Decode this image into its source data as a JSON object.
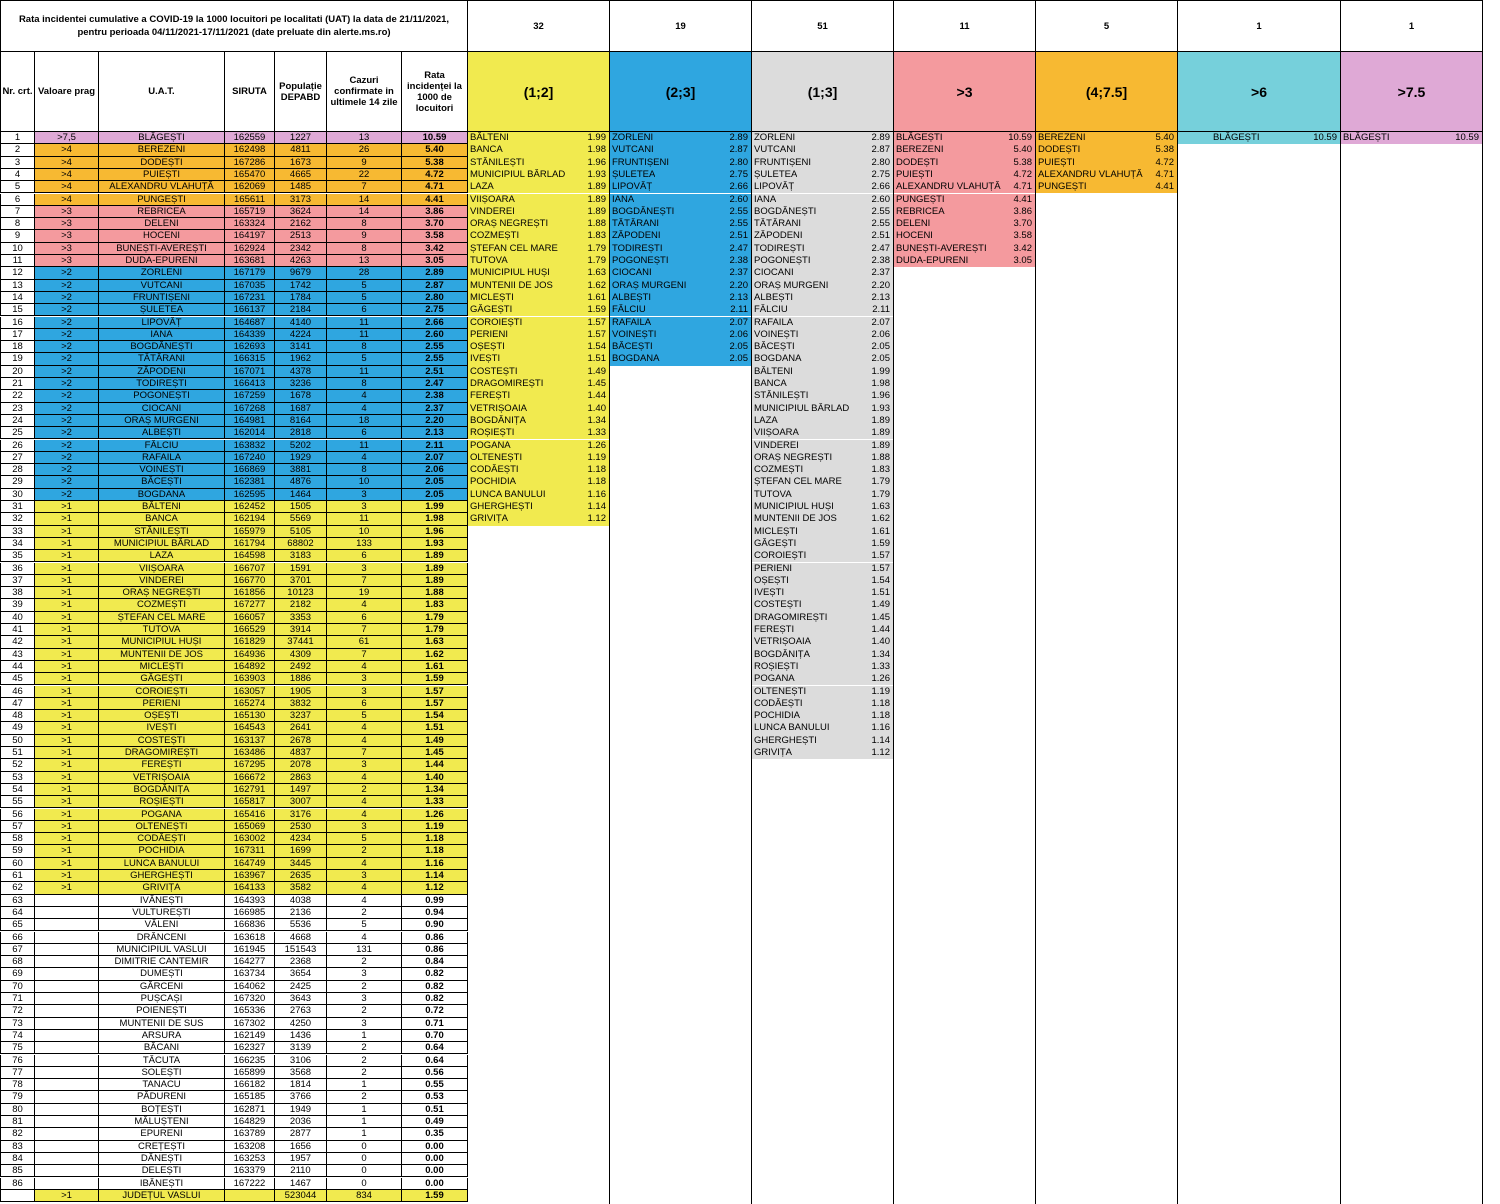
{
  "title": "Rata incidentei cumulative a COVID-19 la 1000 locuitori pe localitati (UAT) la data de 21/11/2021, pentru perioada 04/11/2021-17/11/2021 (date preluate din alerte.ms.ro)",
  "headers": {
    "nr": "Nr. crt.",
    "prag": "Valoare prag",
    "uat": "U.A.T.",
    "siruta": "SIRUTA",
    "pop": "Populație DEPABD",
    "cazuri": "Cazuri confirmate in ultimele 14 zile",
    "rata": "Rata incidenței la 1000 de locuitori"
  },
  "colors": {
    "gt75": "#dfa9d6",
    "gt4": "#f7b932",
    "gt3": "#f49a9e",
    "gt2": "#2fa6e0",
    "gt1": "#f1ea4f",
    "none": "#ffffff",
    "grey": "#dcdcdc",
    "cyan": "#76d0db"
  },
  "rows": [
    [
      "1",
      ">7,5",
      "BLĂGEȘTI",
      "162559",
      "1227",
      "13",
      "10.59"
    ],
    [
      "2",
      ">4",
      "BEREZENI",
      "162498",
      "4811",
      "26",
      "5.40"
    ],
    [
      "3",
      ">4",
      "DODEȘTI",
      "167286",
      "1673",
      "9",
      "5.38"
    ],
    [
      "4",
      ">4",
      "PUIEȘTI",
      "165470",
      "4665",
      "22",
      "4.72"
    ],
    [
      "5",
      ">4",
      "ALEXANDRU VLAHUȚĂ",
      "162069",
      "1485",
      "7",
      "4.71"
    ],
    [
      "6",
      ">4",
      "PUNGEȘTI",
      "165611",
      "3173",
      "14",
      "4.41"
    ],
    [
      "7",
      ">3",
      "REBRICEA",
      "165719",
      "3624",
      "14",
      "3.86"
    ],
    [
      "8",
      ">3",
      "DELENI",
      "163324",
      "2162",
      "8",
      "3.70"
    ],
    [
      "9",
      ">3",
      "HOCENI",
      "164197",
      "2513",
      "9",
      "3.58"
    ],
    [
      "10",
      ">3",
      "BUNEȘTI-AVEREȘTI",
      "162924",
      "2342",
      "8",
      "3.42"
    ],
    [
      "11",
      ">3",
      "DUDA-EPURENI",
      "163681",
      "4263",
      "13",
      "3.05"
    ],
    [
      "12",
      ">2",
      "ZORLENI",
      "167179",
      "9679",
      "28",
      "2.89"
    ],
    [
      "13",
      ">2",
      "VUTCANI",
      "167035",
      "1742",
      "5",
      "2.87"
    ],
    [
      "14",
      ">2",
      "FRUNTIȘENI",
      "167231",
      "1784",
      "5",
      "2.80"
    ],
    [
      "15",
      ">2",
      "ȘULETEA",
      "166137",
      "2184",
      "6",
      "2.75"
    ],
    [
      "16",
      ">2",
      "LIPOVĂȚ",
      "164687",
      "4140",
      "11",
      "2.66"
    ],
    [
      "17",
      ">2",
      "IANA",
      "164339",
      "4224",
      "11",
      "2.60"
    ],
    [
      "18",
      ">2",
      "BOGDĂNEȘTI",
      "162693",
      "3141",
      "8",
      "2.55"
    ],
    [
      "19",
      ">2",
      "TĂTĂRANI",
      "166315",
      "1962",
      "5",
      "2.55"
    ],
    [
      "20",
      ">2",
      "ZĂPODENI",
      "167071",
      "4378",
      "11",
      "2.51"
    ],
    [
      "21",
      ">2",
      "TODIREȘTI",
      "166413",
      "3236",
      "8",
      "2.47"
    ],
    [
      "22",
      ">2",
      "POGONEȘTI",
      "167259",
      "1678",
      "4",
      "2.38"
    ],
    [
      "23",
      ">2",
      "CIOCANI",
      "167268",
      "1687",
      "4",
      "2.37"
    ],
    [
      "24",
      ">2",
      "ORAȘ MURGENI",
      "164981",
      "8164",
      "18",
      "2.20"
    ],
    [
      "25",
      ">2",
      "ALBEȘTI",
      "162014",
      "2818",
      "6",
      "2.13"
    ],
    [
      "26",
      ">2",
      "FĂLCIU",
      "163832",
      "5202",
      "11",
      "2.11"
    ],
    [
      "27",
      ">2",
      "RAFAILA",
      "167240",
      "1929",
      "4",
      "2.07"
    ],
    [
      "28",
      ">2",
      "VOINEȘTI",
      "166869",
      "3881",
      "8",
      "2.06"
    ],
    [
      "29",
      ">2",
      "BĂCEȘTI",
      "162381",
      "4876",
      "10",
      "2.05"
    ],
    [
      "30",
      ">2",
      "BOGDANA",
      "162595",
      "1464",
      "3",
      "2.05"
    ],
    [
      "31",
      ">1",
      "BĂLTENI",
      "162452",
      "1505",
      "3",
      "1.99"
    ],
    [
      "32",
      ">1",
      "BANCA",
      "162194",
      "5569",
      "11",
      "1.98"
    ],
    [
      "33",
      ">1",
      "STĂNILEȘTI",
      "165979",
      "5105",
      "10",
      "1.96"
    ],
    [
      "34",
      ">1",
      "MUNICIPIUL BÂRLAD",
      "161794",
      "68802",
      "133",
      "1.93"
    ],
    [
      "35",
      ">1",
      "LAZA",
      "164598",
      "3183",
      "6",
      "1.89"
    ],
    [
      "36",
      ">1",
      "VIIȘOARA",
      "166707",
      "1591",
      "3",
      "1.89"
    ],
    [
      "37",
      ">1",
      "VINDEREI",
      "166770",
      "3701",
      "7",
      "1.89"
    ],
    [
      "38",
      ">1",
      "ORAȘ NEGREȘTI",
      "161856",
      "10123",
      "19",
      "1.88"
    ],
    [
      "39",
      ">1",
      "COZMEȘTI",
      "167277",
      "2182",
      "4",
      "1.83"
    ],
    [
      "40",
      ">1",
      "ȘTEFAN CEL MARE",
      "166057",
      "3353",
      "6",
      "1.79"
    ],
    [
      "41",
      ">1",
      "TUTOVA",
      "166529",
      "3914",
      "7",
      "1.79"
    ],
    [
      "42",
      ">1",
      "MUNICIPIUL HUȘI",
      "161829",
      "37441",
      "61",
      "1.63"
    ],
    [
      "43",
      ">1",
      "MUNTENII DE JOS",
      "164936",
      "4309",
      "7",
      "1.62"
    ],
    [
      "44",
      ">1",
      "MICLEȘTI",
      "164892",
      "2492",
      "4",
      "1.61"
    ],
    [
      "45",
      ">1",
      "GĂGEȘTI",
      "163903",
      "1886",
      "3",
      "1.59"
    ],
    [
      "46",
      ">1",
      "COROIEȘTI",
      "163057",
      "1905",
      "3",
      "1.57"
    ],
    [
      "47",
      ">1",
      "PERIENI",
      "165274",
      "3832",
      "6",
      "1.57"
    ],
    [
      "48",
      ">1",
      "OȘEȘTI",
      "165130",
      "3237",
      "5",
      "1.54"
    ],
    [
      "49",
      ">1",
      "IVEȘTI",
      "164543",
      "2641",
      "4",
      "1.51"
    ],
    [
      "50",
      ">1",
      "COSTEȘTI",
      "163137",
      "2678",
      "4",
      "1.49"
    ],
    [
      "51",
      ">1",
      "DRAGOMIREȘTI",
      "163486",
      "4837",
      "7",
      "1.45"
    ],
    [
      "52",
      ">1",
      "FEREȘTI",
      "167295",
      "2078",
      "3",
      "1.44"
    ],
    [
      "53",
      ">1",
      "VETRIȘOAIA",
      "166672",
      "2863",
      "4",
      "1.40"
    ],
    [
      "54",
      ">1",
      "BOGDĂNIȚA",
      "162791",
      "1497",
      "2",
      "1.34"
    ],
    [
      "55",
      ">1",
      "ROȘIEȘTI",
      "165817",
      "3007",
      "4",
      "1.33"
    ],
    [
      "56",
      ">1",
      "POGANA",
      "165416",
      "3176",
      "4",
      "1.26"
    ],
    [
      "57",
      ">1",
      "OLTENEȘTI",
      "165069",
      "2530",
      "3",
      "1.19"
    ],
    [
      "58",
      ">1",
      "CODĂEȘTI",
      "163002",
      "4234",
      "5",
      "1.18"
    ],
    [
      "59",
      ">1",
      "POCHIDIA",
      "167311",
      "1699",
      "2",
      "1.18"
    ],
    [
      "60",
      ">1",
      "LUNCA BANULUI",
      "164749",
      "3445",
      "4",
      "1.16"
    ],
    [
      "61",
      ">1",
      "GHERGHEȘTI",
      "163967",
      "2635",
      "3",
      "1.14"
    ],
    [
      "62",
      ">1",
      "GRIVIȚA",
      "164133",
      "3582",
      "4",
      "1.12"
    ],
    [
      "63",
      "",
      "IVĂNEȘTI",
      "164393",
      "4038",
      "4",
      "0.99"
    ],
    [
      "64",
      "",
      "VULTUREȘTI",
      "166985",
      "2136",
      "2",
      "0.94"
    ],
    [
      "65",
      "",
      "VĂLENI",
      "166836",
      "5536",
      "5",
      "0.90"
    ],
    [
      "66",
      "",
      "DRÂNCENI",
      "163618",
      "4668",
      "4",
      "0.86"
    ],
    [
      "67",
      "",
      "MUNICIPIUL VASLUI",
      "161945",
      "151543",
      "131",
      "0.86"
    ],
    [
      "68",
      "",
      "DIMITRIE CANTEMIR",
      "164277",
      "2368",
      "2",
      "0.84"
    ],
    [
      "69",
      "",
      "DUMEȘTI",
      "163734",
      "3654",
      "3",
      "0.82"
    ],
    [
      "70",
      "",
      "GĂRCENI",
      "164062",
      "2425",
      "2",
      "0.82"
    ],
    [
      "71",
      "",
      "PUȘCAȘI",
      "167320",
      "3643",
      "3",
      "0.82"
    ],
    [
      "72",
      "",
      "POIENEȘTI",
      "165336",
      "2763",
      "2",
      "0.72"
    ],
    [
      "73",
      "",
      "MUNTENII DE SUS",
      "167302",
      "4250",
      "3",
      "0.71"
    ],
    [
      "74",
      "",
      "ARSURA",
      "162149",
      "1436",
      "1",
      "0.70"
    ],
    [
      "75",
      "",
      "BĂCANI",
      "162327",
      "3139",
      "2",
      "0.64"
    ],
    [
      "76",
      "",
      "TĂCUTA",
      "166235",
      "3106",
      "2",
      "0.64"
    ],
    [
      "77",
      "",
      "SOLEȘTI",
      "165899",
      "3568",
      "2",
      "0.56"
    ],
    [
      "78",
      "",
      "TANACU",
      "166182",
      "1814",
      "1",
      "0.55"
    ],
    [
      "79",
      "",
      "PĂDURENI",
      "165185",
      "3766",
      "2",
      "0.53"
    ],
    [
      "80",
      "",
      "BOȚEȘTI",
      "162871",
      "1949",
      "1",
      "0.51"
    ],
    [
      "81",
      "",
      "MĂLUȘTENI",
      "164829",
      "2036",
      "1",
      "0.49"
    ],
    [
      "82",
      "",
      "EPURENI",
      "163789",
      "2877",
      "1",
      "0.35"
    ],
    [
      "83",
      "",
      "CREȚEȘTI",
      "163208",
      "1656",
      "0",
      "0.00"
    ],
    [
      "84",
      "",
      "DĂNEȘTI",
      "163253",
      "1957",
      "0",
      "0.00"
    ],
    [
      "85",
      "",
      "DELEȘTI",
      "163379",
      "2110",
      "0",
      "0.00"
    ],
    [
      "86",
      "",
      "IBĂNEȘTI",
      "167222",
      "1467",
      "0",
      "0.00"
    ]
  ],
  "total": [
    "",
    ">1",
    "JUDEȚUL VASLUI",
    "",
    "523044",
    "834",
    "1.59"
  ],
  "lists": [
    {
      "count": "32",
      "band": "(1;2]",
      "color": "#f1ea4f",
      "items": [
        [
          "BĂLTENI",
          "1.99"
        ],
        [
          "BANCA",
          "1.98"
        ],
        [
          "STĂNILEȘTI",
          "1.96"
        ],
        [
          "MUNICIPIUL BÂRLAD",
          "1.93"
        ],
        [
          "LAZA",
          "1.89"
        ],
        [
          "VIIȘOARA",
          "1.89"
        ],
        [
          "VINDEREI",
          "1.89"
        ],
        [
          "ORAȘ NEGREȘTI",
          "1.88"
        ],
        [
          "COZMEȘTI",
          "1.83"
        ],
        [
          "ȘTEFAN CEL MARE",
          "1.79"
        ],
        [
          "TUTOVA",
          "1.79"
        ],
        [
          "MUNICIPIUL HUȘI",
          "1.63"
        ],
        [
          "MUNTENII DE JOS",
          "1.62"
        ],
        [
          "MICLEȘTI",
          "1.61"
        ],
        [
          "GĂGEȘTI",
          "1.59"
        ],
        [
          "COROIEȘTI",
          "1.57"
        ],
        [
          "PERIENI",
          "1.57"
        ],
        [
          "OȘEȘTI",
          "1.54"
        ],
        [
          "IVEȘTI",
          "1.51"
        ],
        [
          "COSTEȘTI",
          "1.49"
        ],
        [
          "DRAGOMIREȘTI",
          "1.45"
        ],
        [
          "FEREȘTI",
          "1.44"
        ],
        [
          "VETRIȘOAIA",
          "1.40"
        ],
        [
          "BOGDĂNIȚA",
          "1.34"
        ],
        [
          "ROȘIEȘTI",
          "1.33"
        ],
        [
          "POGANA",
          "1.26"
        ],
        [
          "OLTENEȘTI",
          "1.19"
        ],
        [
          "CODĂEȘTI",
          "1.18"
        ],
        [
          "POCHIDIA",
          "1.18"
        ],
        [
          "LUNCA BANULUI",
          "1.16"
        ],
        [
          "GHERGHEȘTI",
          "1.14"
        ],
        [
          "GRIVIȚA",
          "1.12"
        ]
      ]
    },
    {
      "count": "19",
      "band": "(2;3]",
      "color": "#2fa6e0",
      "items": [
        [
          "ZORLENI",
          "2.89"
        ],
        [
          "VUTCANI",
          "2.87"
        ],
        [
          "FRUNTIȘENI",
          "2.80"
        ],
        [
          "ȘULETEA",
          "2.75"
        ],
        [
          "LIPOVĂȚ",
          "2.66"
        ],
        [
          "IANA",
          "2.60"
        ],
        [
          "BOGDĂNEȘTI",
          "2.55"
        ],
        [
          "TĂTĂRANI",
          "2.55"
        ],
        [
          "ZĂPODENI",
          "2.51"
        ],
        [
          "TODIREȘTI",
          "2.47"
        ],
        [
          "POGONEȘTI",
          "2.38"
        ],
        [
          "CIOCANI",
          "2.37"
        ],
        [
          "ORAȘ MURGENI",
          "2.20"
        ],
        [
          "ALBEȘTI",
          "2.13"
        ],
        [
          "FĂLCIU",
          "2.11"
        ],
        [
          "RAFAILA",
          "2.07"
        ],
        [
          "VOINEȘTI",
          "2.06"
        ],
        [
          "BĂCEȘTI",
          "2.05"
        ],
        [
          "BOGDANA",
          "2.05"
        ]
      ]
    },
    {
      "count": "51",
      "band": "(1;3]",
      "color": "#dcdcdc",
      "items": [
        [
          "ZORLENI",
          "2.89"
        ],
        [
          "VUTCANI",
          "2.87"
        ],
        [
          "FRUNTIȘENI",
          "2.80"
        ],
        [
          "ȘULETEA",
          "2.75"
        ],
        [
          "LIPOVĂȚ",
          "2.66"
        ],
        [
          "IANA",
          "2.60"
        ],
        [
          "BOGDĂNEȘTI",
          "2.55"
        ],
        [
          "TĂTĂRANI",
          "2.55"
        ],
        [
          "ZĂPODENI",
          "2.51"
        ],
        [
          "TODIREȘTI",
          "2.47"
        ],
        [
          "POGONEȘTI",
          "2.38"
        ],
        [
          "CIOCANI",
          "2.37"
        ],
        [
          "ORAȘ MURGENI",
          "2.20"
        ],
        [
          "ALBEȘTI",
          "2.13"
        ],
        [
          "FĂLCIU",
          "2.11"
        ],
        [
          "RAFAILA",
          "2.07"
        ],
        [
          "VOINEȘTI",
          "2.06"
        ],
        [
          "BĂCEȘTI",
          "2.05"
        ],
        [
          "BOGDANA",
          "2.05"
        ],
        [
          "BĂLTENI",
          "1.99"
        ],
        [
          "BANCA",
          "1.98"
        ],
        [
          "STĂNILEȘTI",
          "1.96"
        ],
        [
          "MUNICIPIUL BÂRLAD",
          "1.93"
        ],
        [
          "LAZA",
          "1.89"
        ],
        [
          "VIIȘOARA",
          "1.89"
        ],
        [
          "VINDEREI",
          "1.89"
        ],
        [
          "ORAȘ NEGREȘTI",
          "1.88"
        ],
        [
          "COZMEȘTI",
          "1.83"
        ],
        [
          "ȘTEFAN CEL MARE",
          "1.79"
        ],
        [
          "TUTOVA",
          "1.79"
        ],
        [
          "MUNICIPIUL HUȘI",
          "1.63"
        ],
        [
          "MUNTENII DE JOS",
          "1.62"
        ],
        [
          "MICLEȘTI",
          "1.61"
        ],
        [
          "GĂGEȘTI",
          "1.59"
        ],
        [
          "COROIEȘTI",
          "1.57"
        ],
        [
          "PERIENI",
          "1.57"
        ],
        [
          "OȘEȘTI",
          "1.54"
        ],
        [
          "IVEȘTI",
          "1.51"
        ],
        [
          "COSTEȘTI",
          "1.49"
        ],
        [
          "DRAGOMIREȘTI",
          "1.45"
        ],
        [
          "FEREȘTI",
          "1.44"
        ],
        [
          "VETRIȘOAIA",
          "1.40"
        ],
        [
          "BOGDĂNIȚA",
          "1.34"
        ],
        [
          "ROȘIEȘTI",
          "1.33"
        ],
        [
          "POGANA",
          "1.26"
        ],
        [
          "OLTENEȘTI",
          "1.19"
        ],
        [
          "CODĂEȘTI",
          "1.18"
        ],
        [
          "POCHIDIA",
          "1.18"
        ],
        [
          "LUNCA BANULUI",
          "1.16"
        ],
        [
          "GHERGHEȘTI",
          "1.14"
        ],
        [
          "GRIVIȚA",
          "1.12"
        ]
      ]
    },
    {
      "count": "11",
      "band": ">3",
      "color": "#f49a9e",
      "items": [
        [
          "BLĂGEȘTI",
          "10.59"
        ],
        [
          "BEREZENI",
          "5.40"
        ],
        [
          "DODEȘTI",
          "5.38"
        ],
        [
          "PUIEȘTI",
          "4.72"
        ],
        [
          "ALEXANDRU VLAHUȚĂ",
          "4.71"
        ],
        [
          "PUNGEȘTI",
          "4.41"
        ],
        [
          "REBRICEA",
          "3.86"
        ],
        [
          "DELENI",
          "3.70"
        ],
        [
          "HOCENI",
          "3.58"
        ],
        [
          "BUNEȘTI-AVEREȘTI",
          "3.42"
        ],
        [
          "DUDA-EPURENI",
          "3.05"
        ]
      ]
    },
    {
      "count": "5",
      "band": "(4;7.5]",
      "color": "#f7b932",
      "items": [
        [
          "BEREZENI",
          "5.40"
        ],
        [
          "DODEȘTI",
          "5.38"
        ],
        [
          "PUIEȘTI",
          "4.72"
        ],
        [
          "ALEXANDRU VLAHUȚĂ",
          "4.71"
        ],
        [
          "PUNGEȘTI",
          "4.41"
        ]
      ]
    },
    {
      "count": "1",
      "band": ">6",
      "color": "#76d0db",
      "items": [
        [
          "BLĂGEȘTI",
          "10.59"
        ]
      ]
    },
    {
      "count": "1",
      "band": ">7.5",
      "color": "#dfa9d6",
      "items": [
        [
          "BLĂGEȘTI",
          "10.59"
        ]
      ]
    }
  ]
}
